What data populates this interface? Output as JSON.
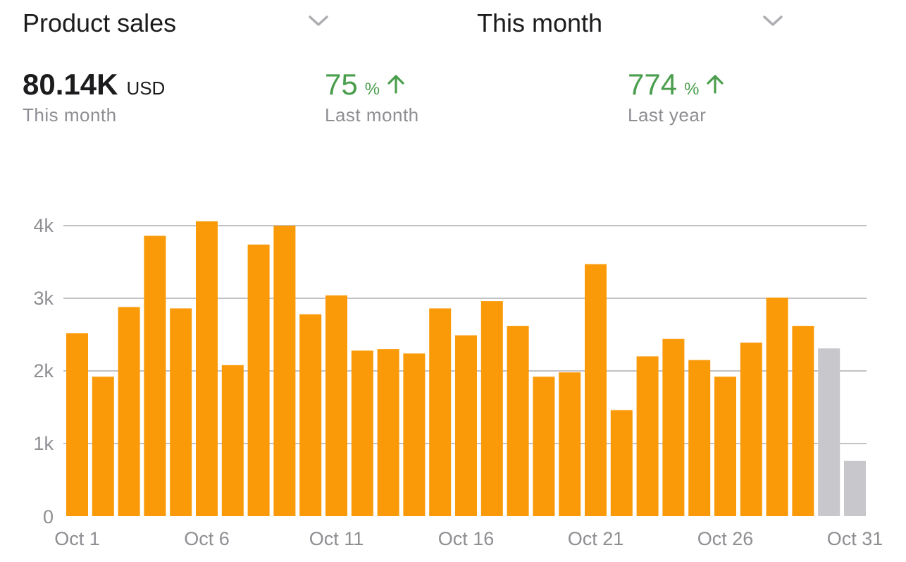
{
  "header": {
    "metric_selector": {
      "label": "Product sales",
      "icon": "chevron-down-icon"
    },
    "period_selector": {
      "label": "This month",
      "icon": "chevron-down-icon"
    }
  },
  "summary": {
    "total": {
      "value": "80.14K",
      "unit": "USD",
      "caption": "This month"
    },
    "vs_last_month": {
      "value": "75",
      "unit": "%",
      "caption": "Last month",
      "icon": "arrow-up-icon"
    },
    "vs_last_year": {
      "value": "774",
      "unit": "%",
      "caption": "Last year",
      "icon": "arrow-up-icon"
    }
  },
  "colors": {
    "bar": "#fb9a08",
    "bar_projected": "#c7c7cc",
    "positive": "#4a9e4d",
    "grid": "#c2c2c6",
    "tick_text": "#8e8e93"
  },
  "chart_data": {
    "type": "bar",
    "categories": [
      "Oct 1",
      "Oct 2",
      "Oct 3",
      "Oct 4",
      "Oct 5",
      "Oct 6",
      "Oct 7",
      "Oct 8",
      "Oct 9",
      "Oct 10",
      "Oct 11",
      "Oct 12",
      "Oct 13",
      "Oct 14",
      "Oct 15",
      "Oct 16",
      "Oct 17",
      "Oct 18",
      "Oct 19",
      "Oct 20",
      "Oct 21",
      "Oct 22",
      "Oct 23",
      "Oct 24",
      "Oct 25",
      "Oct 26",
      "Oct 27",
      "Oct 28",
      "Oct 29",
      "Oct 30",
      "Oct 31"
    ],
    "x_tick_labels": [
      "Oct 1",
      "Oct 6",
      "Oct 11",
      "Oct 16",
      "Oct 21",
      "Oct 26",
      "Oct 31"
    ],
    "values": [
      2520,
      1920,
      2880,
      3860,
      2860,
      4060,
      2080,
      3740,
      4000,
      2780,
      3040,
      2280,
      2300,
      2240,
      2860,
      2490,
      2960,
      2620,
      1920,
      1980,
      3470,
      1460,
      2200,
      2440,
      2150,
      1920,
      2390,
      3010,
      2620,
      2310,
      760
    ],
    "projected": [
      false,
      false,
      false,
      false,
      false,
      false,
      false,
      false,
      false,
      false,
      false,
      false,
      false,
      false,
      false,
      false,
      false,
      false,
      false,
      false,
      false,
      false,
      false,
      false,
      false,
      false,
      false,
      false,
      false,
      true,
      true
    ],
    "y_tick_labels": [
      "0",
      "1k",
      "2k",
      "3k",
      "4k"
    ],
    "y_ticks": [
      0,
      1000,
      2000,
      3000,
      4000
    ],
    "ylim": [
      0,
      4000
    ],
    "grid": true,
    "xlabel": "",
    "ylabel": "",
    "title": ""
  }
}
